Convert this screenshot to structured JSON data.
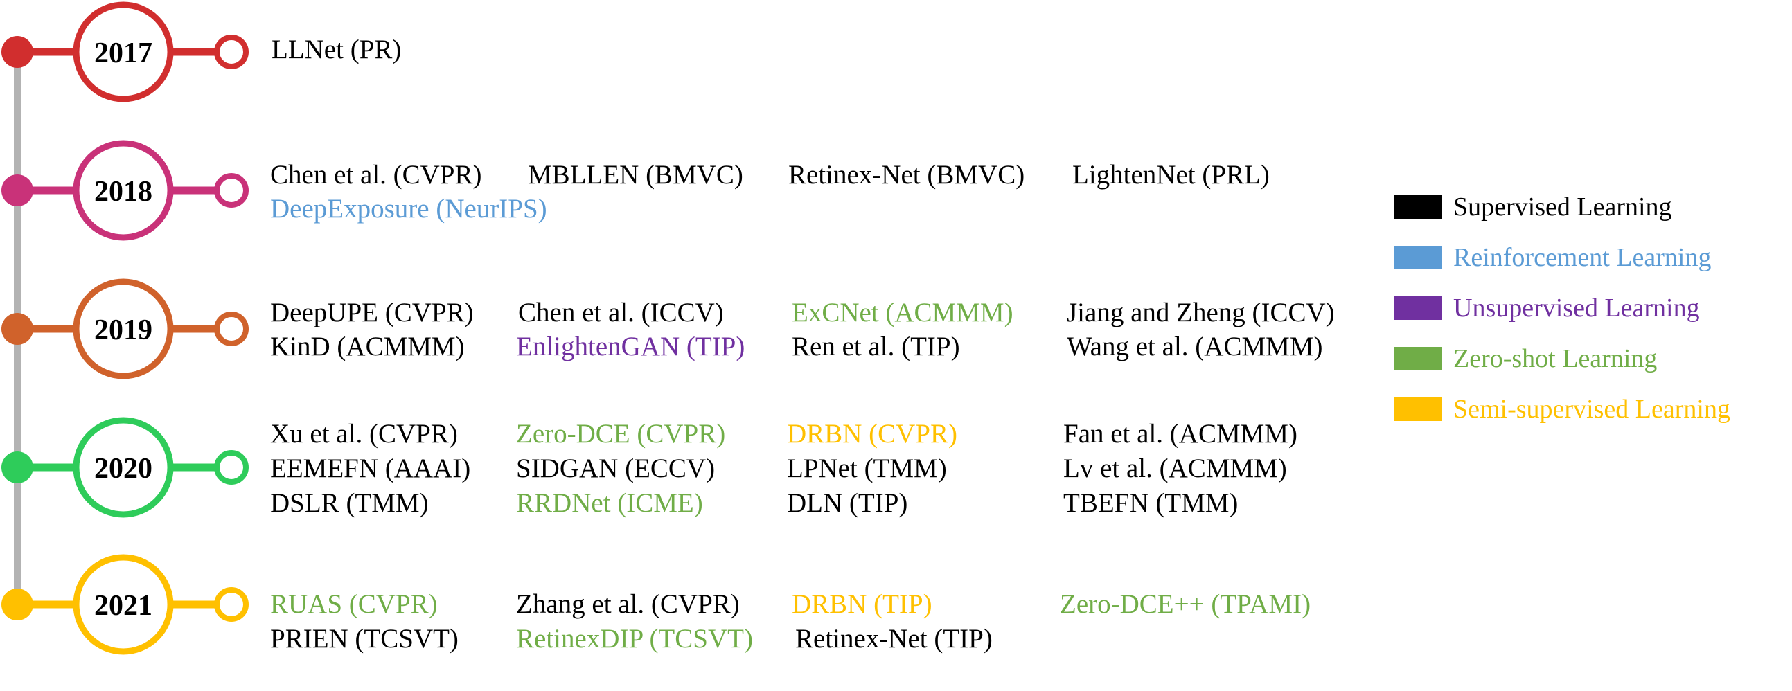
{
  "colors": {
    "axis": "#b3b3b3",
    "supervised": "#000000",
    "reinforcement": "#5b9bd5",
    "unsupervised": "#7030a0",
    "zero_shot": "#70ad47",
    "semi_supervised": "#ffc000"
  },
  "years": [
    {
      "label": "2017",
      "color": "#d12e2e",
      "rows": [
        [
          "LLNet (PR)"
        ]
      ],
      "kinds": [
        [
          "supervised"
        ]
      ]
    },
    {
      "label": "2018",
      "color": "#c93279",
      "rows": [
        [
          "Chen et al. (CVPR)",
          "MBLLEN (BMVC)",
          "Retinex-Net (BMVC)",
          "LightenNet (PRL)"
        ],
        [
          "DeepExposure (NeurIPS)"
        ]
      ],
      "kinds": [
        [
          "supervised",
          "supervised",
          "supervised",
          "supervised"
        ],
        [
          "reinforcement"
        ]
      ]
    },
    {
      "label": "2019",
      "color": "#d0622b",
      "rows": [
        [
          "DeepUPE (CVPR)",
          "Chen et al. (ICCV)",
          "ExCNet (ACMMM)",
          "Jiang and Zheng (ICCV)"
        ],
        [
          "KinD (ACMMM)",
          "EnlightenGAN (TIP)",
          "Ren et al. (TIP)",
          "Wang et al. (ACMMM)"
        ]
      ],
      "kinds": [
        [
          "supervised",
          "supervised",
          "zero_shot",
          "supervised"
        ],
        [
          "supervised",
          "unsupervised",
          "supervised",
          "supervised"
        ]
      ]
    },
    {
      "label": "2020",
      "color": "#2ecc5a",
      "rows": [
        [
          "Xu et al. (CVPR)",
          "Zero-DCE (CVPR)",
          "DRBN (CVPR)",
          "Fan et al. (ACMMM)"
        ],
        [
          "EEMEFN (AAAI)",
          "SIDGAN (ECCV)",
          "LPNet (TMM)",
          "Lv et al. (ACMMM)"
        ],
        [
          "DSLR (TMM)",
          "RRDNet (ICME)",
          "DLN (TIP)",
          "TBEFN (TMM)"
        ]
      ],
      "kinds": [
        [
          "supervised",
          "zero_shot",
          "semi_supervised",
          "supervised"
        ],
        [
          "supervised",
          "supervised",
          "supervised",
          "supervised"
        ],
        [
          "supervised",
          "zero_shot",
          "supervised",
          "supervised"
        ]
      ]
    },
    {
      "label": "2021",
      "color": "#ffc000",
      "rows": [
        [
          "RUAS (CVPR)",
          "Zhang et al. (CVPR)",
          "DRBN (TIP)",
          "Zero-DCE++ (TPAMI)"
        ],
        [
          "PRIEN (TCSVT)",
          "RetinexDIP (TCSVT)",
          "Retinex-Net (TIP)"
        ]
      ],
      "kinds": [
        [
          "zero_shot",
          "supervised",
          "semi_supervised",
          "zero_shot"
        ],
        [
          "supervised",
          "zero_shot",
          "supervised"
        ]
      ]
    }
  ],
  "legend": [
    {
      "label": "Supervised Learning",
      "kind": "supervised"
    },
    {
      "label": "Reinforcement Learning",
      "kind": "reinforcement"
    },
    {
      "label": "Unsupervised Learning",
      "kind": "unsupervised"
    },
    {
      "label": "Zero-shot Learning",
      "kind": "zero_shot"
    },
    {
      "label": "Semi-supervised Learning",
      "kind": "semi_supervised"
    }
  ]
}
